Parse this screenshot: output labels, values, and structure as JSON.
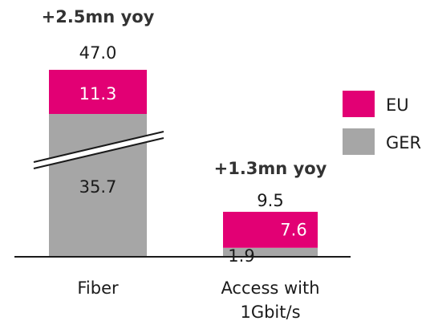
{
  "colors": {
    "eu": "#e20074",
    "ger": "#a6a6a6",
    "axis": "#1a1a1a"
  },
  "chart_data": {
    "type": "bar",
    "stacked": true,
    "y_axis_broken_on": "Fiber",
    "legend_position": "right",
    "categories": [
      {
        "name": "Fiber",
        "label_lines": [
          "Fiber"
        ],
        "total_label": "47.0",
        "yoy_label": "+2.5mn yoy"
      },
      {
        "name": "Access with 1Gbit/s",
        "label_lines": [
          "Access with",
          "1Gbit/s"
        ],
        "total_label": "9.5",
        "yoy_label": "+1.3mn yoy"
      }
    ],
    "series": [
      {
        "name": "GER",
        "values": [
          35.7,
          1.9
        ],
        "value_labels": [
          "35.7",
          "1.9"
        ]
      },
      {
        "name": "EU",
        "values": [
          11.3,
          7.6
        ],
        "value_labels": [
          "11.3",
          "7.6"
        ]
      }
    ],
    "totals": [
      47.0,
      9.5
    ],
    "legend": [
      {
        "name": "EU",
        "color_key": "eu"
      },
      {
        "name": "GER",
        "color_key": "ger"
      }
    ]
  }
}
